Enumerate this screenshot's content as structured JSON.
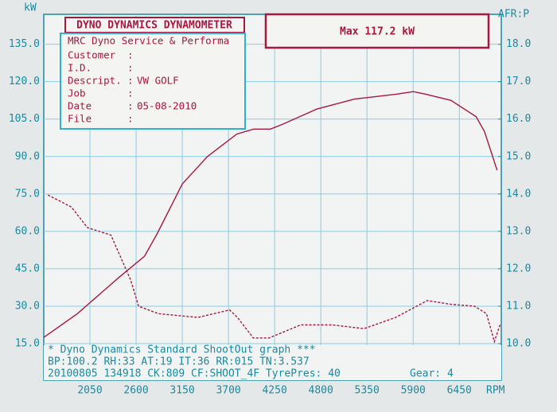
{
  "chart_data": {
    "type": "line",
    "header": "DYNO DYNAMICS DYNAMOMETER",
    "max_label": "Max 117.2 kW",
    "info": {
      "title": "MRC Dyno Service & Performa",
      "separator": ":",
      "rows": [
        {
          "label": "Customer"
        },
        {
          "label": "I.D."
        },
        {
          "label": "Descript.",
          "value": "VW GOLF"
        },
        {
          "label": "Job"
        },
        {
          "label": "Date",
          "value": "05-08-2010"
        },
        {
          "label": "File"
        }
      ]
    },
    "y_label": "kW",
    "y2_label": "AFR:P",
    "x_label": "RPM",
    "footer": [
      "* Dyno Dynamics Standard ShootOut graph ***",
      "BP:100.2 RH:33 AT:19 IT:36  RR:015 TN:3.537",
      "20100805 134918 CK:809 CF:SHOOT_4F TyrePres: 40"
    ],
    "gear": "Gear: 4",
    "xlim": [
      1500,
      6950
    ],
    "xticks": [
      2050,
      2600,
      3150,
      3700,
      4250,
      4800,
      5350,
      5900,
      6450
    ],
    "ylim": [
      15,
      147
    ],
    "yticks": [
      {
        "value": 15,
        "label": "15.0"
      },
      {
        "value": 30,
        "label": "30.0"
      },
      {
        "value": 45,
        "label": "45.0"
      },
      {
        "value": 60,
        "label": "60.0"
      },
      {
        "value": 75,
        "label": "75.0"
      },
      {
        "value": 90,
        "label": "90.0"
      },
      {
        "value": 105,
        "label": "105.0"
      },
      {
        "value": 120,
        "label": "120.0"
      },
      {
        "value": 135,
        "label": "135.0"
      }
    ],
    "y2lim": [
      10,
      18.8
    ],
    "y2ticks": [
      {
        "value": 10,
        "label": "10.0"
      },
      {
        "value": 11,
        "label": "11.0"
      },
      {
        "value": 12,
        "label": "12.0"
      },
      {
        "value": 13,
        "label": "13.0"
      },
      {
        "value": 14,
        "label": "14.0"
      },
      {
        "value": 15,
        "label": "15.0"
      },
      {
        "value": 16,
        "label": "16.0"
      },
      {
        "value": 17,
        "label": "17.0"
      },
      {
        "value": 18,
        "label": "18.0"
      }
    ],
    "grid": true,
    "series": [
      {
        "color": "#a8173f",
        "dash": false,
        "x": [
          1500,
          1900,
          2400,
          2700,
          2850,
          3150,
          3450,
          3800,
          4000,
          4200,
          4350,
          4750,
          5200,
          5700,
          5900,
          6050,
          6350,
          6650,
          6750,
          6900
        ],
        "values": [
          17.5,
          27,
          41.7,
          50,
          59,
          79,
          90,
          99,
          101,
          101,
          103,
          109,
          113,
          115,
          116,
          115,
          112.5,
          106,
          100,
          84.5
        ]
      },
      {
        "color": "#a8173f",
        "dash": true,
        "axis": "y2",
        "x": [
          1550,
          1830,
          2020,
          2300,
          2535,
          2630,
          2866,
          3337,
          3713,
          3807,
          3996,
          4184,
          4561,
          4938,
          5314,
          5691,
          6068,
          6350,
          6632,
          6774,
          6868,
          6934
        ],
        "values": [
          13.97,
          13.65,
          13.1,
          12.9,
          11.7,
          11.0,
          10.8,
          10.7,
          10.9,
          10.7,
          10.15,
          10.15,
          10.5,
          10.5,
          10.4,
          10.7,
          11.15,
          11.05,
          11.0,
          10.8,
          10.05,
          10.5
        ]
      }
    ]
  }
}
